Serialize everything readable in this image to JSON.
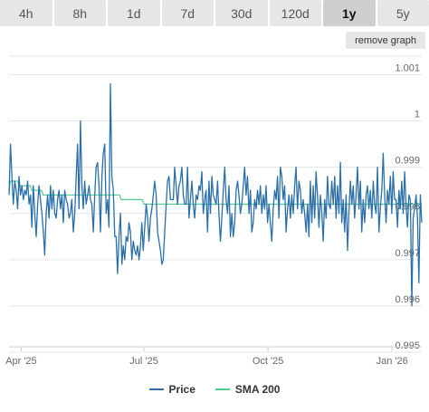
{
  "ranges": [
    "4h",
    "8h",
    "1d",
    "7d",
    "30d",
    "120d",
    "1y",
    "5y"
  ],
  "active_range": "1y",
  "remove_graph_label": "remove graph",
  "chart_data": {
    "type": "line",
    "x_ticks": [
      "Apr '25",
      "Jul '25",
      "Oct '25",
      "Jan '26"
    ],
    "y_ticks": [
      0.995,
      0.996,
      0.997,
      0.998,
      0.999,
      1,
      1.001
    ],
    "y_tick_labels": [
      "0.995",
      "0.996",
      "0.997",
      "0.998",
      "0.999",
      "1",
      "1.001"
    ],
    "ylim": [
      0.995,
      1.0014
    ],
    "x_range": [
      "2025-03-23",
      "2026-01-23"
    ],
    "grid": "horizontal",
    "legend": "bottom",
    "series": [
      {
        "name": "Price",
        "color": "#2b6fa8",
        "values": [
          0.9984,
          0.9995,
          0.9988,
          0.9982,
          0.9987,
          0.9985,
          0.9981,
          0.9988,
          0.9984,
          0.9986,
          0.9983,
          0.9985,
          0.9984,
          0.9987,
          0.9982,
          0.9984,
          0.9977,
          0.9986,
          0.998,
          0.9975,
          0.9982,
          0.9986,
          0.9983,
          0.998,
          0.9976,
          0.9971,
          0.998,
          0.9984,
          0.9979,
          0.9986,
          0.9981,
          0.9985,
          0.998,
          0.9979,
          0.9983,
          0.9985,
          0.9981,
          0.9984,
          0.9978,
          0.9985,
          0.9983,
          0.9982,
          0.9979,
          0.998,
          0.9983,
          0.9976,
          0.998,
          0.9988,
          0.9995,
          0.9981,
          1.0,
          0.9986,
          0.9981,
          0.9987,
          0.9982,
          0.9984,
          0.9986,
          0.9983,
          0.9982,
          0.9976,
          0.9984,
          0.999,
          0.9991,
          0.9986,
          0.9976,
          0.9988,
          0.9993,
          0.9995,
          0.998,
          0.9983,
          0.9977,
          1.0008,
          0.9988,
          0.9985,
          0.9975,
          0.9975,
          0.9967,
          0.9975,
          0.998,
          0.9969,
          0.9973,
          0.997,
          0.9975,
          0.9974,
          0.9978,
          0.9976,
          0.997,
          0.9974,
          0.9972,
          0.9971,
          0.9973,
          0.997,
          0.9973,
          0.9978,
          0.9972,
          0.9977,
          0.9982,
          0.9979,
          0.9974,
          0.9979,
          0.9981,
          0.9984,
          0.9987,
          0.9984,
          0.9976,
          0.9974,
          0.9972,
          0.9969,
          0.997,
          0.9976,
          0.9982,
          0.9987,
          0.9988,
          0.9983,
          0.9983,
          0.9983,
          0.999,
          0.9986,
          0.9982,
          0.9986,
          0.9987,
          0.999,
          0.9984,
          0.9982,
          0.9982,
          0.999,
          0.9979,
          0.9983,
          0.9987,
          0.9982,
          0.9979,
          0.9984,
          0.9983,
          0.9986,
          0.9985,
          0.9989,
          0.998,
          0.9983,
          0.9985,
          0.9976,
          0.9987,
          0.998,
          0.9988,
          0.9984,
          0.9983,
          0.9982,
          0.9987,
          0.998,
          0.9974,
          0.9979,
          0.9985,
          0.999,
          0.9983,
          0.998,
          0.9986,
          0.9975,
          0.998,
          0.9975,
          0.9978,
          0.9985,
          0.9987,
          0.9984,
          0.998,
          0.9982,
          0.9986,
          0.999,
          0.9984,
          0.9988,
          0.998,
          0.9985,
          0.9976,
          0.9978,
          0.9983,
          0.9981,
          0.9985,
          0.9982,
          0.9986,
          0.998,
          0.9984,
          0.9981,
          0.9986,
          0.9978,
          0.9982,
          0.9978,
          0.9974,
          0.9981,
          0.9985,
          0.9983,
          0.9988,
          0.9979,
          0.999,
          0.9988,
          0.9983,
          0.9986,
          0.9976,
          0.9981,
          0.9984,
          0.9979,
          0.9984,
          0.998,
          0.9986,
          0.999,
          0.9981,
          0.9987,
          0.9985,
          0.998,
          0.9983,
          0.998,
          0.9976,
          0.9982,
          0.9975,
          0.9987,
          0.9978,
          0.9986,
          0.9979,
          0.9989,
          0.9984,
          0.9977,
          0.9984,
          0.998,
          0.9974,
          0.9983,
          0.9979,
          0.9988,
          0.9982,
          0.9981,
          0.9987,
          0.9982,
          0.9988,
          0.9979,
          0.9986,
          0.998,
          0.9991,
          0.9978,
          0.9983,
          0.9976,
          0.9984,
          0.9972,
          0.998,
          0.9987,
          0.9982,
          0.9986,
          0.9979,
          0.9984,
          0.999,
          0.9981,
          0.9987,
          0.9976,
          0.9983,
          0.9978,
          0.9984,
          0.9986,
          0.9981,
          0.9985,
          0.9979,
          0.9987,
          0.9982,
          0.998,
          0.999,
          0.9976,
          0.9981,
          0.9985,
          0.9993,
          0.9984,
          0.9978,
          0.9985,
          0.9982,
          0.9988,
          0.998,
          0.9989,
          0.9983,
          0.9983,
          0.9977,
          0.9985,
          0.9981,
          0.9987,
          0.998,
          0.9989,
          0.9982,
          0.9977,
          0.9984,
          0.9983,
          0.996,
          0.9979,
          0.9981,
          0.9984,
          0.9979,
          0.9965,
          0.9984,
          0.9978
        ]
      },
      {
        "name": "SMA 200",
        "color": "#4ecb8c",
        "values": [
          0.9985,
          0.9987,
          0.9987,
          0.9987,
          0.9987,
          0.9987,
          0.9987,
          0.9986,
          0.9986,
          0.9986,
          0.9986,
          0.9986,
          0.9986,
          0.9986,
          0.9986,
          0.9986,
          0.9985,
          0.9985,
          0.9985,
          0.9985,
          0.9985,
          0.9985,
          0.9985,
          0.9985,
          0.9984,
          0.9984,
          0.9984,
          0.9984,
          0.9984,
          0.9984,
          0.9984,
          0.9984,
          0.9984,
          0.9984,
          0.9984,
          0.9984,
          0.9984,
          0.9984,
          0.9984,
          0.9984,
          0.9984,
          0.9984,
          0.9984,
          0.9984,
          0.9984,
          0.9984,
          0.9984,
          0.9984,
          0.9984,
          0.9984,
          0.9984,
          0.9984,
          0.9984,
          0.9984,
          0.9984,
          0.9984,
          0.9984,
          0.9984,
          0.9984,
          0.9984,
          0.9984,
          0.9984,
          0.9984,
          0.9984,
          0.9984,
          0.9984,
          0.9984,
          0.9984,
          0.9984,
          0.9984,
          0.9984,
          0.9984,
          0.9984,
          0.9984,
          0.9984,
          0.9984,
          0.9984,
          0.9984,
          0.9984,
          0.9983,
          0.9983,
          0.9983,
          0.9983,
          0.9983,
          0.9983,
          0.9983,
          0.9983,
          0.9983,
          0.9983,
          0.9983,
          0.9983,
          0.9983,
          0.9983,
          0.9983,
          0.9983,
          0.9982,
          0.9982,
          0.9982,
          0.9982,
          0.9982,
          0.9982,
          0.9982,
          0.9982,
          0.9982,
          0.9982,
          0.9982,
          0.9982,
          0.9982,
          0.9982,
          0.9982,
          0.9982,
          0.9982,
          0.9982,
          0.9982,
          0.9982,
          0.9982,
          0.9982,
          0.9982,
          0.9982,
          0.9982,
          0.9982,
          0.9982,
          0.9982,
          0.9982,
          0.9982,
          0.9982,
          0.9982,
          0.9982,
          0.9982,
          0.9982,
          0.9982,
          0.9982,
          0.9982,
          0.9982,
          0.9982,
          0.9982,
          0.9982,
          0.9982,
          0.9982,
          0.9982,
          0.9982,
          0.9982,
          0.9982,
          0.9982,
          0.9982,
          0.9982,
          0.9982,
          0.9982,
          0.9982,
          0.9982,
          0.9982,
          0.9982,
          0.9982,
          0.9982,
          0.9982,
          0.9982,
          0.9982,
          0.9982,
          0.9982,
          0.9982,
          0.9982,
          0.9982,
          0.9982,
          0.9982,
          0.9982,
          0.9982,
          0.9982,
          0.9982,
          0.9982,
          0.9982,
          0.9982,
          0.9982,
          0.9982,
          0.9982,
          0.9982,
          0.9982,
          0.9982,
          0.9982,
          0.9982,
          0.9982,
          0.9982,
          0.9982,
          0.9982,
          0.9982,
          0.9982,
          0.9982,
          0.9982,
          0.9982,
          0.9982,
          0.9982,
          0.9982,
          0.9982,
          0.9982,
          0.9982,
          0.9982,
          0.9982,
          0.9982,
          0.9982,
          0.9982,
          0.9982,
          0.9982,
          0.9982,
          0.9982,
          0.9982,
          0.9982,
          0.9982,
          0.9982,
          0.9982,
          0.9982,
          0.9982,
          0.9982,
          0.9982,
          0.9982,
          0.9982,
          0.9982,
          0.9982,
          0.9982,
          0.9982,
          0.9982,
          0.9982,
          0.9982,
          0.9982,
          0.9982,
          0.9982,
          0.9982,
          0.9982,
          0.9982,
          0.9982,
          0.9982,
          0.9982,
          0.9982,
          0.9982,
          0.9982,
          0.9982,
          0.9982,
          0.9982,
          0.9982,
          0.9982,
          0.9982,
          0.9982,
          0.9982,
          0.9982,
          0.9982,
          0.9982,
          0.9982,
          0.9982,
          0.9982,
          0.9982,
          0.9982,
          0.9982,
          0.9982,
          0.9982,
          0.9982,
          0.9982,
          0.9982,
          0.9982,
          0.9982,
          0.9982,
          0.9982,
          0.9982,
          0.9982,
          0.9982,
          0.9982,
          0.9982,
          0.9982,
          0.9982,
          0.9982,
          0.9982,
          0.9982,
          0.9982,
          0.9982,
          0.9982,
          0.9982,
          0.9982,
          0.9982,
          0.9982,
          0.9982,
          0.9982,
          0.9982,
          0.9982,
          0.9982,
          0.9982,
          0.9982,
          0.9982,
          0.9982,
          0.9982,
          0.9982,
          0.9982,
          0.9982,
          0.9982,
          0.9982,
          0.9982
        ]
      }
    ]
  }
}
